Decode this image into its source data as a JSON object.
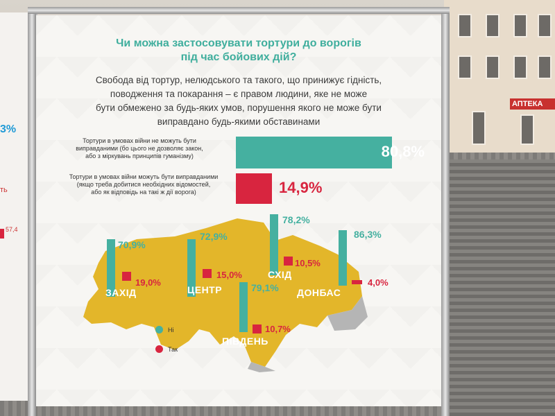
{
  "background": {
    "shop_sign": "АПТЕКА",
    "left_banner": {
      "pct": "3%",
      "word": "ть",
      "value": "57,4"
    }
  },
  "banner": {
    "title_line1": "Чи можна застосовувати тортури до ворогів",
    "title_line2": "під час бойових дій?",
    "subtitle_lines": [
      "Свобода від тортур, нелюдського та такого, що принижує гідність,",
      "поводження та покарання – є правом людини, яке не може",
      "бути обмежено за будь-яких умов, порушення якого не може бути",
      "виправдано будь-якими обставинами"
    ],
    "statement_no_lines": [
      "Тортури в умовах війни не можуть бути",
      "виправданими (бо цього не дозволяє закон,",
      "або з міркувань принципів гуманізму)"
    ],
    "statement_yes_lines": [
      "Тортури в умовах війни можуть бути виправданими",
      "(якщо треба добитися необхідних відомостей,",
      "або як відповідь на такі ж дії ворога)"
    ],
    "total_no": {
      "label": "80,8%",
      "value": 80.8
    },
    "total_yes": {
      "label": "14,9%",
      "value": 14.9
    },
    "regions": [
      {
        "name": "ЗАХІД",
        "no_label": "70,9%",
        "yes_label": "19,0%"
      },
      {
        "name": "ЦЕНТР",
        "no_label": "72,9%",
        "yes_label": "15,0%"
      },
      {
        "name": "СХІД",
        "no_label": "78,2%",
        "yes_label": "10,5%"
      },
      {
        "name": "ДОНБАС",
        "no_label": "86,3%",
        "yes_label": "4,0%"
      },
      {
        "name": "ПІВДЕНЬ",
        "no_label": "79,1%",
        "yes_label": "10,7%"
      }
    ],
    "legend": {
      "no": "Ні",
      "yes": "Так"
    },
    "colors": {
      "teal": "#45b0a0",
      "red": "#d8253f",
      "map_yellow": "#e3b62a",
      "map_gray": "#b5b5b5"
    }
  }
}
